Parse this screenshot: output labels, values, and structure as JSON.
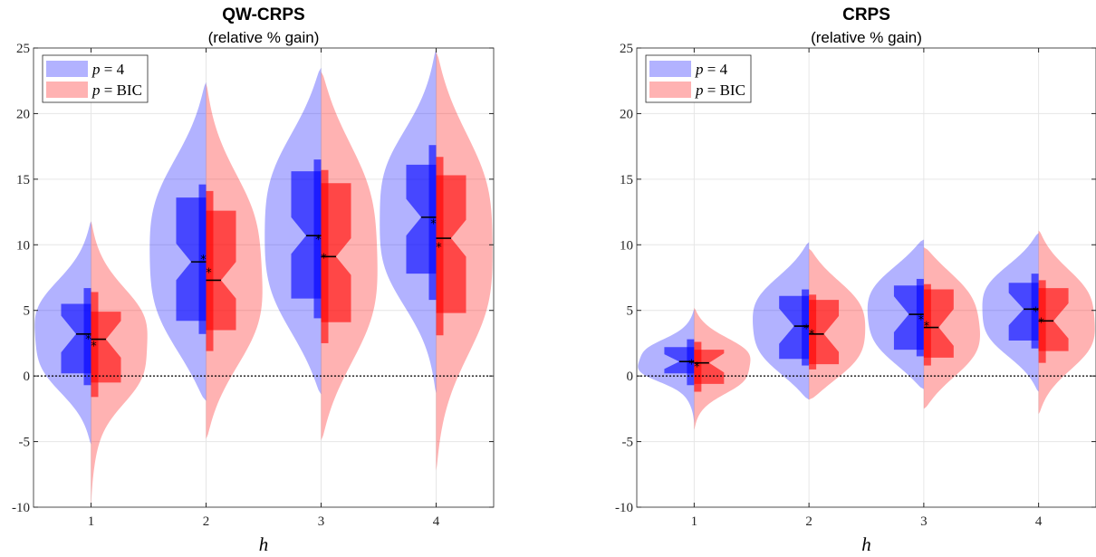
{
  "chart_data": [
    {
      "type": "violin",
      "title": "QW-CRPS",
      "subtitle": "(relative % gain)",
      "xlabel": "h",
      "ylabel": "",
      "categories": [
        "1",
        "2",
        "3",
        "4"
      ],
      "ylim": [
        -10,
        25
      ],
      "yticks": [
        "-10",
        "-5",
        "0",
        "5",
        "10",
        "15",
        "20",
        "25"
      ],
      "grid": true,
      "zero_line": true,
      "legend": {
        "placement": "top-left",
        "entries": [
          {
            "var": "p",
            "eq": " = ",
            "val": "4"
          },
          {
            "var": "p",
            "eq": " = ",
            "val": "BIC"
          }
        ]
      },
      "series": [
        {
          "name": "p = 4",
          "color": "#0000ff",
          "side": "left",
          "stats": [
            {
              "whisker_low": -0.7,
              "q1": 0.2,
              "median": 3.2,
              "mean": 2.9,
              "q3": 5.5,
              "whisker_high": 6.7,
              "min": -5.2,
              "max": 11.8
            },
            {
              "whisker_low": 3.2,
              "q1": 4.2,
              "median": 8.7,
              "mean": 9.0,
              "q3": 13.6,
              "whisker_high": 14.6,
              "min": -1.9,
              "max": 22.4
            },
            {
              "whisker_low": 4.4,
              "q1": 5.9,
              "median": 10.7,
              "mean": 10.5,
              "q3": 15.6,
              "whisker_high": 16.5,
              "min": -1.4,
              "max": 23.5
            },
            {
              "whisker_low": 5.8,
              "q1": 7.8,
              "median": 12.1,
              "mean": 11.7,
              "q3": 16.1,
              "whisker_high": 17.6,
              "min": -1.3,
              "max": 24.9
            }
          ]
        },
        {
          "name": "p = BIC",
          "color": "#ff0000",
          "side": "right",
          "stats": [
            {
              "whisker_low": -1.6,
              "q1": -0.5,
              "median": 2.8,
              "mean": 2.4,
              "q3": 4.9,
              "whisker_high": 6.4,
              "min": -10.0,
              "max": 11.8
            },
            {
              "whisker_low": 1.9,
              "q1": 3.5,
              "median": 7.3,
              "mean": 8.0,
              "q3": 12.6,
              "whisker_high": 14.1,
              "min": -4.8,
              "max": 22.3
            },
            {
              "whisker_low": 2.5,
              "q1": 4.1,
              "median": 9.1,
              "mean": 9.1,
              "q3": 14.7,
              "whisker_high": 15.7,
              "min": -4.9,
              "max": 23.2
            },
            {
              "whisker_low": 3.1,
              "q1": 4.8,
              "median": 10.5,
              "mean": 9.9,
              "q3": 15.3,
              "whisker_high": 16.7,
              "min": -7.2,
              "max": 24.7
            }
          ]
        }
      ]
    },
    {
      "type": "violin",
      "title": "CRPS",
      "subtitle": "(relative % gain)",
      "xlabel": "h",
      "ylabel": "",
      "categories": [
        "1",
        "2",
        "3",
        "4"
      ],
      "ylim": [
        -10,
        25
      ],
      "yticks": [
        "-10",
        "-5",
        "0",
        "5",
        "10",
        "15",
        "20",
        "25"
      ],
      "grid": true,
      "zero_line": true,
      "legend": {
        "placement": "top-left",
        "entries": [
          {
            "var": "p",
            "eq": " = ",
            "val": "4"
          },
          {
            "var": "p",
            "eq": " = ",
            "val": "BIC"
          }
        ]
      },
      "series": [
        {
          "name": "p = 4",
          "color": "#0000ff",
          "side": "left",
          "stats": [
            {
              "whisker_low": -0.7,
              "q1": 0.2,
              "median": 1.1,
              "mean": 1.0,
              "q3": 2.2,
              "whisker_high": 2.8,
              "min": -3.6,
              "max": 5.1
            },
            {
              "whisker_low": 0.8,
              "q1": 1.3,
              "median": 3.8,
              "mean": 3.7,
              "q3": 6.1,
              "whisker_high": 6.6,
              "min": -1.8,
              "max": 10.2
            },
            {
              "whisker_low": 1.5,
              "q1": 2.0,
              "median": 4.7,
              "mean": 4.4,
              "q3": 6.9,
              "whisker_high": 7.4,
              "min": -1.0,
              "max": 10.4
            },
            {
              "whisker_low": 2.1,
              "q1": 2.7,
              "median": 5.1,
              "mean": 5.0,
              "q3": 7.1,
              "whisker_high": 7.8,
              "min": -1.2,
              "max": 10.9
            }
          ]
        },
        {
          "name": "p = BIC",
          "color": "#ff0000",
          "side": "right",
          "stats": [
            {
              "whisker_low": -1.2,
              "q1": -0.6,
              "median": 1.0,
              "mean": 0.8,
              "q3": 2.0,
              "whisker_high": 2.6,
              "min": -4.1,
              "max": 5.2
            },
            {
              "whisker_low": 0.5,
              "q1": 0.9,
              "median": 3.2,
              "mean": 3.3,
              "q3": 5.8,
              "whisker_high": 6.2,
              "min": -1.8,
              "max": 9.7
            },
            {
              "whisker_low": 0.8,
              "q1": 1.4,
              "median": 3.7,
              "mean": 3.9,
              "q3": 6.6,
              "whisker_high": 7.0,
              "min": -2.5,
              "max": 9.8
            },
            {
              "whisker_low": 1.0,
              "q1": 1.9,
              "median": 4.2,
              "mean": 4.2,
              "q3": 6.7,
              "whisker_high": 7.3,
              "min": -2.9,
              "max": 11.1
            }
          ]
        }
      ]
    }
  ]
}
